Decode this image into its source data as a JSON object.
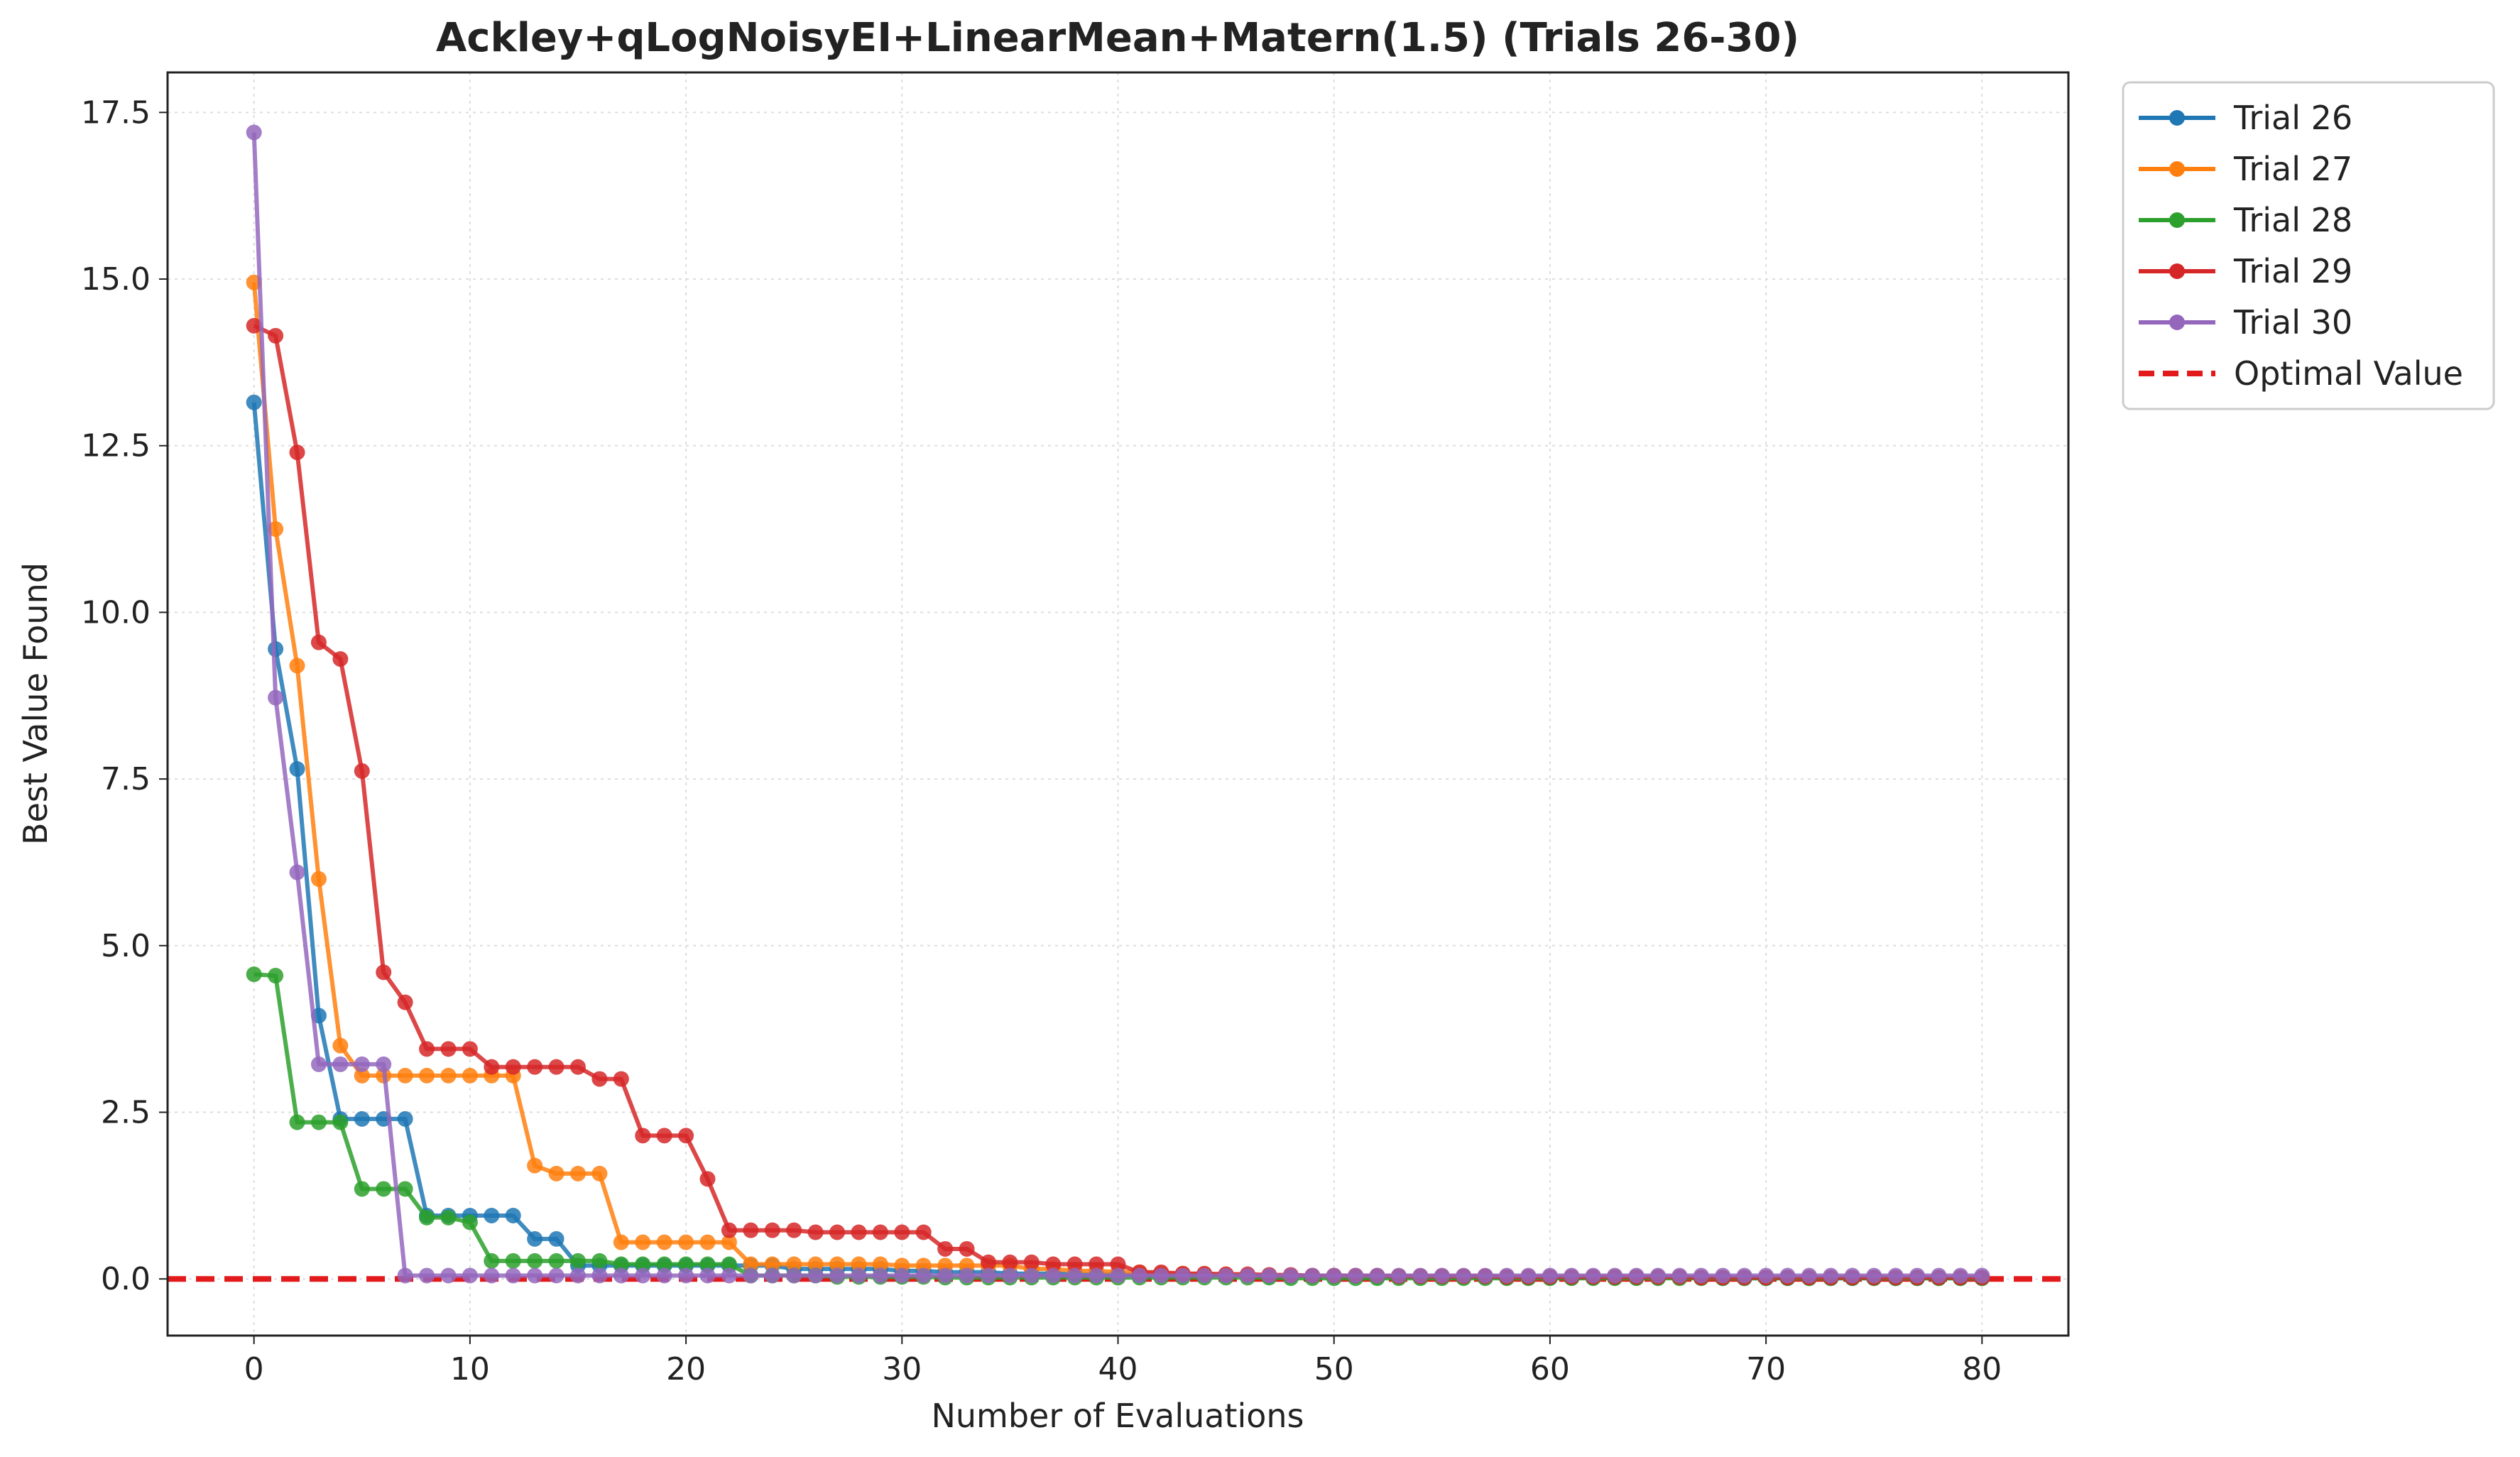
{
  "chart_data": {
    "type": "line",
    "title": "Ackley+qLogNoisyEI+LinearMean+Matern(1.5) (Trials 26-30)",
    "xlabel": "Number of Evaluations",
    "ylabel": "Best Value Found",
    "xlim": [
      -4,
      84
    ],
    "ylim": [
      -0.85,
      18.1
    ],
    "xticks": [
      0,
      10,
      20,
      30,
      40,
      50,
      60,
      70,
      80
    ],
    "xtick_labels": [
      "0",
      "10",
      "20",
      "30",
      "40",
      "50",
      "60",
      "70",
      "80"
    ],
    "yticks": [
      0,
      2.5,
      5,
      7.5,
      10,
      12.5,
      15,
      17.5
    ],
    "ytick_labels": [
      "0.0",
      "2.5",
      "5.0",
      "7.5",
      "10.0",
      "12.5",
      "15.0",
      "17.5"
    ],
    "grid": true,
    "legend_position": "outside-top-right",
    "series": [
      {
        "name": "Trial 26",
        "color": "#1f77b4",
        "x": [
          0,
          1,
          2,
          3,
          4,
          5,
          6,
          7,
          8,
          9,
          10,
          11,
          12,
          13,
          14,
          15,
          16,
          17,
          18,
          19,
          20,
          21,
          22,
          23,
          24,
          25,
          26,
          27,
          28,
          29,
          30,
          31,
          32,
          33,
          34,
          35,
          36,
          37,
          38,
          39,
          40,
          41,
          42,
          43,
          44,
          45,
          46,
          47,
          48,
          49,
          50,
          51,
          52,
          53,
          54,
          55,
          56,
          57,
          58,
          59,
          60,
          61,
          62,
          63,
          64,
          65,
          66,
          67,
          68,
          69,
          70,
          71,
          72,
          73,
          74,
          75,
          76,
          77,
          78,
          79,
          80
        ],
        "y": [
          13.15,
          9.45,
          7.65,
          3.95,
          2.4,
          2.4,
          2.4,
          2.4,
          0.95,
          0.95,
          0.95,
          0.95,
          0.95,
          0.6,
          0.6,
          0.2,
          0.2,
          0.2,
          0.2,
          0.2,
          0.2,
          0.2,
          0.2,
          0.2,
          0.2,
          0.15,
          0.15,
          0.15,
          0.15,
          0.15,
          0.12,
          0.12,
          0.1,
          0.1,
          0.1,
          0.08,
          0.08,
          0.08,
          0.07,
          0.07,
          0.07,
          0.06,
          0.06,
          0.05,
          0.05,
          0.05,
          0.05,
          0.04,
          0.04,
          0.04,
          0.04,
          0.04,
          0.03,
          0.03,
          0.03,
          0.03,
          0.03,
          0.03,
          0.02,
          0.02,
          0.02,
          0.02,
          0.02,
          0.02,
          0.02,
          0.02,
          0.02,
          0.02,
          0.01,
          0.01,
          0.01,
          0.01,
          0.01,
          0.01,
          0.01,
          0.01,
          0.01,
          0.01,
          0.01,
          0.01,
          0.01
        ]
      },
      {
        "name": "Trial 27",
        "color": "#ff7f0e",
        "x": [
          0,
          1,
          2,
          3,
          4,
          5,
          6,
          7,
          8,
          9,
          10,
          11,
          12,
          13,
          14,
          15,
          16,
          17,
          18,
          19,
          20,
          21,
          22,
          23,
          24,
          25,
          26,
          27,
          28,
          29,
          30,
          31,
          32,
          33,
          34,
          35,
          36,
          37,
          38,
          39,
          40,
          41,
          42,
          43,
          44,
          45,
          46,
          47,
          48,
          49,
          50,
          51,
          52,
          53,
          54,
          55,
          56,
          57,
          58,
          59,
          60,
          61,
          62,
          63,
          64,
          65,
          66,
          67,
          68,
          69,
          70,
          71,
          72,
          73,
          74,
          75,
          76,
          77,
          78,
          79,
          80
        ],
        "y": [
          14.95,
          11.25,
          9.2,
          6.0,
          3.5,
          3.05,
          3.05,
          3.05,
          3.05,
          3.05,
          3.05,
          3.05,
          3.05,
          1.7,
          1.58,
          1.58,
          1.58,
          0.55,
          0.55,
          0.55,
          0.55,
          0.55,
          0.55,
          0.22,
          0.22,
          0.22,
          0.22,
          0.22,
          0.22,
          0.22,
          0.2,
          0.2,
          0.2,
          0.2,
          0.2,
          0.2,
          0.15,
          0.15,
          0.12,
          0.12,
          0.1,
          0.1,
          0.08,
          0.08,
          0.07,
          0.07,
          0.06,
          0.06,
          0.05,
          0.05,
          0.05,
          0.05,
          0.04,
          0.04,
          0.04,
          0.04,
          0.04,
          0.04,
          0.03,
          0.03,
          0.03,
          0.03,
          0.03,
          0.03,
          0.03,
          0.02,
          0.02,
          0.02,
          0.02,
          0.02,
          0.02,
          0.02,
          0.02,
          0.02,
          0.02,
          0.02,
          0.02,
          0.02,
          0.02,
          0.02,
          0.02
        ]
      },
      {
        "name": "Trial 28",
        "color": "#2ca02c",
        "x": [
          0,
          1,
          2,
          3,
          4,
          5,
          6,
          7,
          8,
          9,
          10,
          11,
          12,
          13,
          14,
          15,
          16,
          17,
          18,
          19,
          20,
          21,
          22,
          23,
          24,
          25,
          26,
          27,
          28,
          29,
          30,
          31,
          32,
          33,
          34,
          35,
          36,
          37,
          38,
          39,
          40,
          41,
          42,
          43,
          44,
          45,
          46,
          47,
          48,
          49,
          50,
          51,
          52,
          53,
          54,
          55,
          56,
          57,
          58,
          59,
          60,
          61,
          62,
          63,
          64,
          65,
          66,
          67,
          68,
          69,
          70,
          71,
          72,
          73,
          74,
          75,
          76,
          77,
          78,
          79,
          80
        ],
        "y": [
          4.57,
          4.55,
          2.35,
          2.35,
          2.35,
          1.35,
          1.35,
          1.35,
          0.92,
          0.92,
          0.85,
          0.27,
          0.27,
          0.27,
          0.27,
          0.27,
          0.27,
          0.22,
          0.22,
          0.22,
          0.22,
          0.22,
          0.22,
          0.05,
          0.05,
          0.05,
          0.05,
          0.03,
          0.03,
          0.03,
          0.03,
          0.03,
          0.02,
          0.02,
          0.02,
          0.02,
          0.02,
          0.02,
          0.02,
          0.02,
          0.02,
          0.02,
          0.02,
          0.02,
          0.02,
          0.02,
          0.02,
          0.02,
          0.01,
          0.01,
          0.01,
          0.01,
          0.01,
          0.01,
          0.01,
          0.01,
          0.01,
          0.01,
          0.01,
          0.01,
          0.01,
          0.01,
          0.01,
          0.01,
          0.01,
          0.01,
          0.01,
          0.01,
          0.01,
          0.01,
          0.01,
          0.01,
          0.01,
          0.01,
          0.01,
          0.01,
          0.01,
          0.01,
          0.01,
          0.01,
          0.01
        ]
      },
      {
        "name": "Trial 29",
        "color": "#d62728",
        "x": [
          0,
          1,
          2,
          3,
          4,
          5,
          6,
          7,
          8,
          9,
          10,
          11,
          12,
          13,
          14,
          15,
          16,
          17,
          18,
          19,
          20,
          21,
          22,
          23,
          24,
          25,
          26,
          27,
          28,
          29,
          30,
          31,
          32,
          33,
          34,
          35,
          36,
          37,
          38,
          39,
          40,
          41,
          42,
          43,
          44,
          45,
          46,
          47,
          48,
          49,
          50,
          51,
          52,
          53,
          54,
          55,
          56,
          57,
          58,
          59,
          60,
          61,
          62,
          63,
          64,
          65,
          66,
          67,
          68,
          69,
          70,
          71,
          72,
          73,
          74,
          75,
          76,
          77,
          78,
          79,
          80
        ],
        "y": [
          14.3,
          14.15,
          12.4,
          9.55,
          9.3,
          7.62,
          4.6,
          4.15,
          3.45,
          3.45,
          3.45,
          3.18,
          3.18,
          3.18,
          3.18,
          3.18,
          3.0,
          3.0,
          2.15,
          2.15,
          2.15,
          1.5,
          0.73,
          0.73,
          0.73,
          0.73,
          0.7,
          0.7,
          0.7,
          0.7,
          0.7,
          0.7,
          0.45,
          0.45,
          0.25,
          0.25,
          0.25,
          0.22,
          0.22,
          0.22,
          0.22,
          0.1,
          0.1,
          0.08,
          0.08,
          0.07,
          0.07,
          0.06,
          0.06,
          0.05,
          0.05,
          0.05,
          0.05,
          0.04,
          0.04,
          0.04,
          0.04,
          0.04,
          0.03,
          0.03,
          0.03,
          0.03,
          0.03,
          0.03,
          0.03,
          0.03,
          0.03,
          0.02,
          0.02,
          0.02,
          0.02,
          0.02,
          0.02,
          0.02,
          0.02,
          0.02,
          0.02,
          0.02,
          0.02,
          0.02,
          0.02
        ]
      },
      {
        "name": "Trial 30",
        "color": "#9467bd",
        "x": [
          0,
          1,
          2,
          3,
          4,
          5,
          6,
          7,
          8,
          9,
          10,
          11,
          12,
          13,
          14,
          15,
          16,
          17,
          18,
          19,
          20,
          21,
          22,
          23,
          24,
          25,
          26,
          27,
          28,
          29,
          30,
          31,
          32,
          33,
          34,
          35,
          36,
          37,
          38,
          39,
          40,
          41,
          42,
          43,
          44,
          45,
          46,
          47,
          48,
          49,
          50,
          51,
          52,
          53,
          54,
          55,
          56,
          57,
          58,
          59,
          60,
          61,
          62,
          63,
          64,
          65,
          66,
          67,
          68,
          69,
          70,
          71,
          72,
          73,
          74,
          75,
          76,
          77,
          78,
          79,
          80
        ],
        "y": [
          17.2,
          8.72,
          6.1,
          3.22,
          3.22,
          3.22,
          3.22,
          0.05,
          0.05,
          0.05,
          0.05,
          0.05,
          0.05,
          0.05,
          0.05,
          0.05,
          0.05,
          0.05,
          0.05,
          0.05,
          0.05,
          0.05,
          0.05,
          0.05,
          0.05,
          0.05,
          0.05,
          0.05,
          0.05,
          0.05,
          0.05,
          0.05,
          0.05,
          0.05,
          0.05,
          0.05,
          0.05,
          0.05,
          0.05,
          0.05,
          0.05,
          0.05,
          0.05,
          0.05,
          0.05,
          0.05,
          0.05,
          0.05,
          0.05,
          0.05,
          0.05,
          0.05,
          0.05,
          0.05,
          0.05,
          0.05,
          0.05,
          0.05,
          0.05,
          0.05,
          0.05,
          0.05,
          0.05,
          0.05,
          0.05,
          0.05,
          0.05,
          0.05,
          0.05,
          0.05,
          0.05,
          0.05,
          0.05,
          0.05,
          0.05,
          0.05,
          0.05,
          0.05,
          0.05,
          0.05,
          0.05
        ]
      }
    ],
    "reference_line": {
      "name": "Optimal Value",
      "y": 0,
      "color": "#e31a1c",
      "style": "dashed"
    }
  }
}
